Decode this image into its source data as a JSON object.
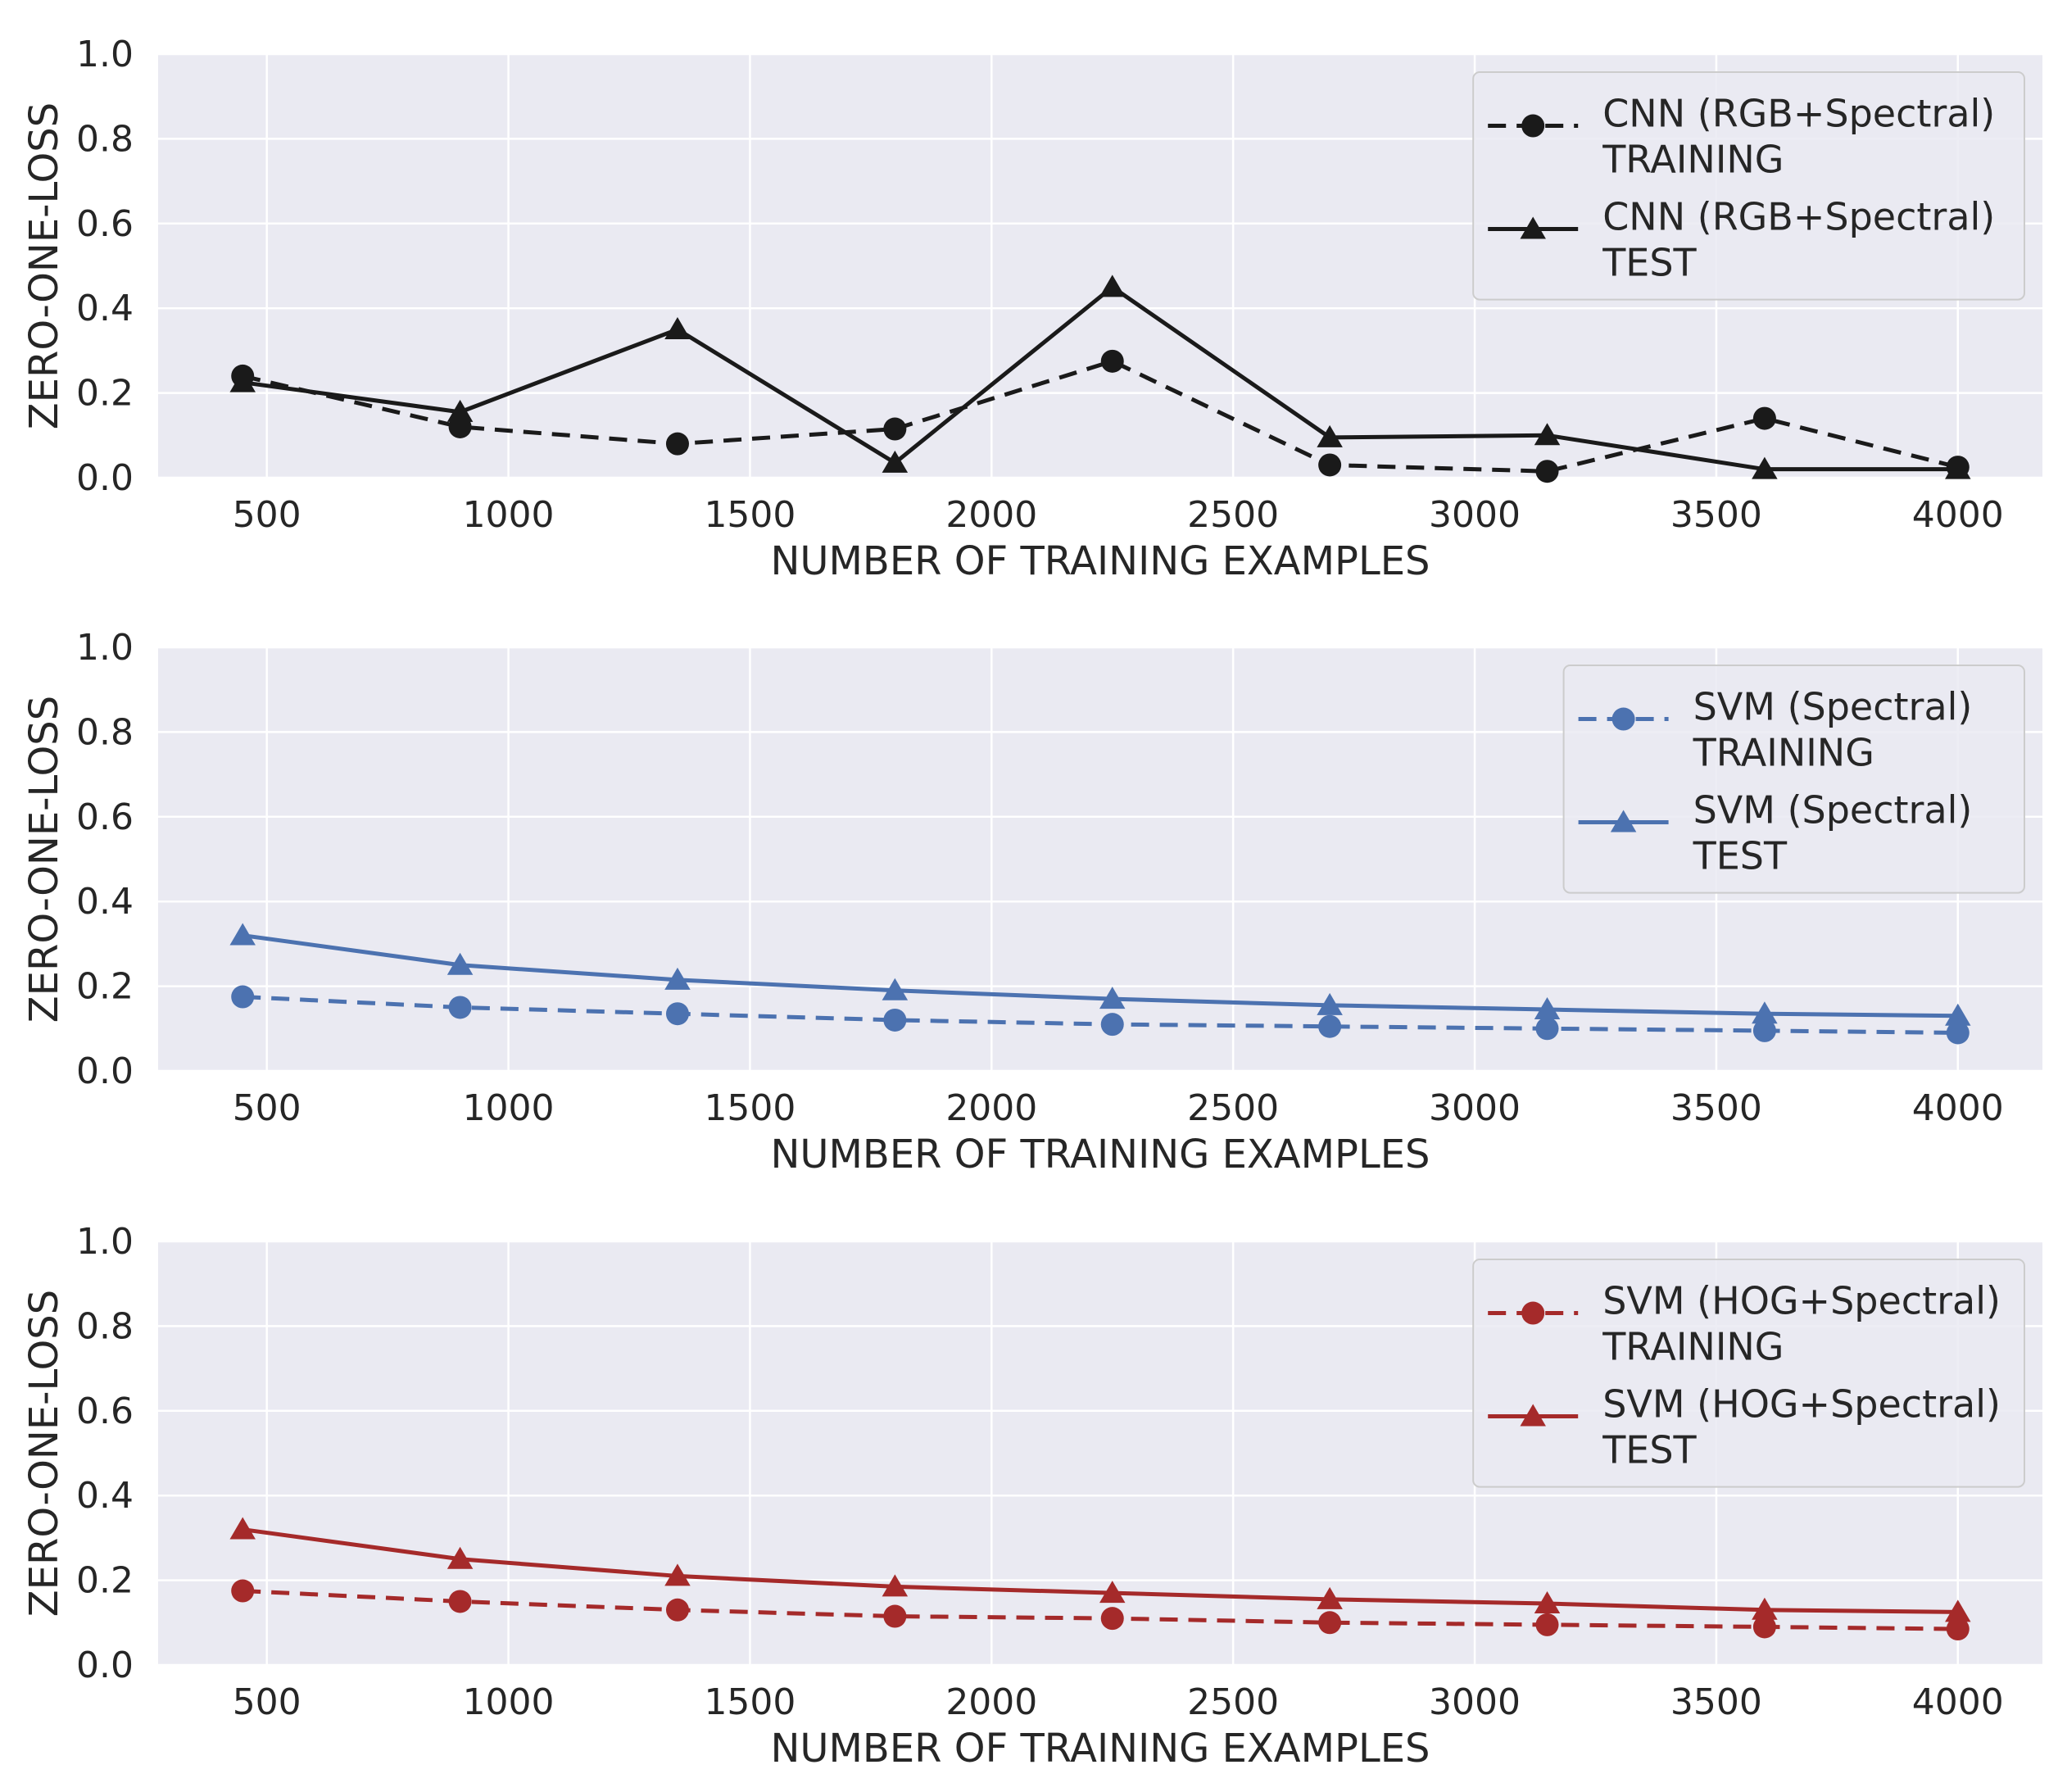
{
  "chart_data": [
    {
      "type": "line",
      "title": "",
      "xlabel": "NUMBER OF TRAINING EXAMPLES",
      "ylabel": "ZERO-ONE-LOSS",
      "xlim": [
        275,
        4175
      ],
      "ylim": [
        0.0,
        1.0
      ],
      "xticks": [
        500,
        1000,
        1500,
        2000,
        2500,
        3000,
        3500,
        4000
      ],
      "xtick_labels": [
        "500",
        "1000",
        "1500",
        "2000",
        "2500",
        "3000",
        "3500",
        "4000"
      ],
      "yticks": [
        0.0,
        0.2,
        0.4,
        0.6,
        0.8,
        1.0
      ],
      "ytick_labels": [
        "0.0",
        "0.2",
        "0.4",
        "0.6",
        "0.8",
        "1.0"
      ],
      "grid": true,
      "legend_position": "top-right",
      "color": "#1a1a1a",
      "x": [
        450,
        900,
        1350,
        1800,
        2250,
        2700,
        3150,
        3600,
        4000
      ],
      "series": [
        {
          "name": "CNN (RGB+Spectral) TRAINING",
          "label_lines": [
            "CNN (RGB+Spectral)",
            "TRAINING"
          ],
          "style": "dashed",
          "marker": "circle",
          "values": [
            0.24,
            0.12,
            0.08,
            0.115,
            0.275,
            0.03,
            0.015,
            0.14,
            0.025
          ]
        },
        {
          "name": "CNN (RGB+Spectral) TEST",
          "label_lines": [
            "CNN (RGB+Spectral)",
            "TEST"
          ],
          "style": "solid",
          "marker": "triangle",
          "values": [
            0.225,
            0.155,
            0.35,
            0.035,
            0.45,
            0.095,
            0.1,
            0.02,
            0.02
          ]
        }
      ]
    },
    {
      "type": "line",
      "title": "",
      "xlabel": "NUMBER OF TRAINING EXAMPLES",
      "ylabel": "ZERO-ONE-LOSS",
      "xlim": [
        275,
        4175
      ],
      "ylim": [
        0.0,
        1.0
      ],
      "xticks": [
        500,
        1000,
        1500,
        2000,
        2500,
        3000,
        3500,
        4000
      ],
      "xtick_labels": [
        "500",
        "1000",
        "1500",
        "2000",
        "2500",
        "3000",
        "3500",
        "4000"
      ],
      "yticks": [
        0.0,
        0.2,
        0.4,
        0.6,
        0.8,
        1.0
      ],
      "ytick_labels": [
        "0.0",
        "0.2",
        "0.4",
        "0.6",
        "0.8",
        "1.0"
      ],
      "grid": true,
      "legend_position": "top-right",
      "color": "#4c72b0",
      "x": [
        450,
        900,
        1350,
        1800,
        2250,
        2700,
        3150,
        3600,
        4000
      ],
      "series": [
        {
          "name": "SVM (Spectral) TRAINING",
          "label_lines": [
            "SVM (Spectral)",
            "TRAINING"
          ],
          "style": "dashed",
          "marker": "circle",
          "values": [
            0.175,
            0.15,
            0.135,
            0.12,
            0.11,
            0.105,
            0.1,
            0.095,
            0.09
          ]
        },
        {
          "name": "SVM (Spectral) TEST",
          "label_lines": [
            "SVM (Spectral)",
            "TEST"
          ],
          "style": "solid",
          "marker": "triangle",
          "values": [
            0.32,
            0.25,
            0.215,
            0.19,
            0.17,
            0.155,
            0.145,
            0.135,
            0.13
          ]
        }
      ]
    },
    {
      "type": "line",
      "title": "",
      "xlabel": "NUMBER OF TRAINING EXAMPLES",
      "ylabel": "ZERO-ONE-LOSS",
      "xlim": [
        275,
        4175
      ],
      "ylim": [
        0.0,
        1.0
      ],
      "xticks": [
        500,
        1000,
        1500,
        2000,
        2500,
        3000,
        3500,
        4000
      ],
      "xtick_labels": [
        "500",
        "1000",
        "1500",
        "2000",
        "2500",
        "3000",
        "3500",
        "4000"
      ],
      "yticks": [
        0.0,
        0.2,
        0.4,
        0.6,
        0.8,
        1.0
      ],
      "ytick_labels": [
        "0.0",
        "0.2",
        "0.4",
        "0.6",
        "0.8",
        "1.0"
      ],
      "grid": true,
      "legend_position": "top-right",
      "color": "#a52a2a",
      "x": [
        450,
        900,
        1350,
        1800,
        2250,
        2700,
        3150,
        3600,
        4000
      ],
      "series": [
        {
          "name": "SVM (HOG+Spectral) TRAINING",
          "label_lines": [
            "SVM (HOG+Spectral)",
            "TRAINING"
          ],
          "style": "dashed",
          "marker": "circle",
          "values": [
            0.175,
            0.15,
            0.13,
            0.115,
            0.11,
            0.1,
            0.095,
            0.09,
            0.085
          ]
        },
        {
          "name": "SVM (HOG+Spectral) TEST",
          "label_lines": [
            "SVM (HOG+Spectral)",
            "TEST"
          ],
          "style": "solid",
          "marker": "triangle",
          "values": [
            0.32,
            0.25,
            0.21,
            0.185,
            0.17,
            0.155,
            0.145,
            0.13,
            0.125
          ]
        }
      ]
    }
  ]
}
